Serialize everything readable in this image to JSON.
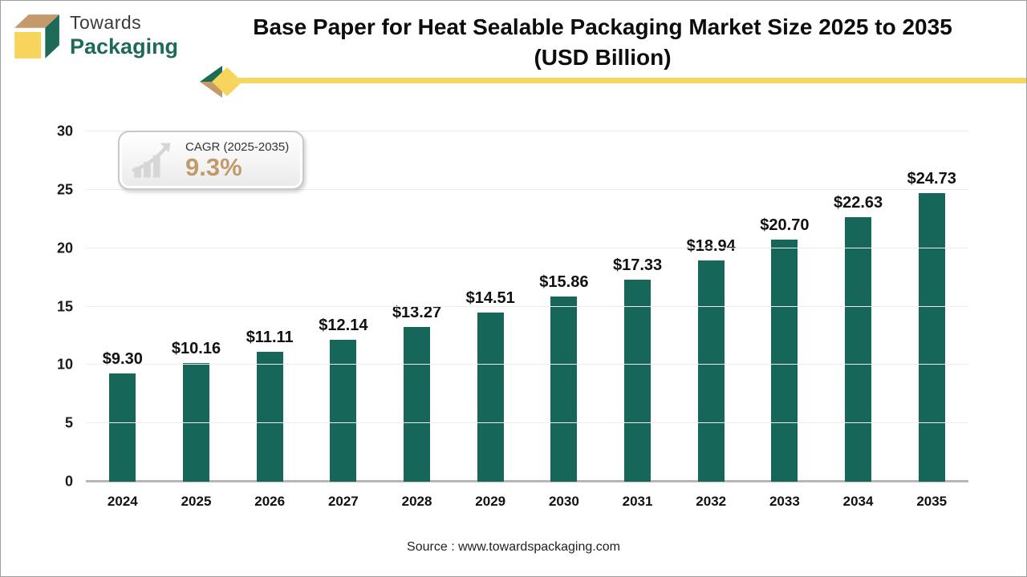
{
  "header": {
    "logo_line1": "Towards",
    "logo_line2": "Packaging",
    "title_line1": "Base Paper for Heat Sealable Packaging Market Size 2025 to 2035",
    "title_line2": "(USD Billion)"
  },
  "cagr_badge": {
    "label": "CAGR (2025-2035)",
    "value": "9.3%"
  },
  "chart_data": {
    "type": "bar",
    "title": "Base Paper for Heat Sealable Packaging Market Size 2025 to 2035 (USD Billion)",
    "categories": [
      "2024",
      "2025",
      "2026",
      "2027",
      "2028",
      "2029",
      "2030",
      "2031",
      "2032",
      "2033",
      "2034",
      "2035"
    ],
    "values": [
      9.3,
      10.16,
      11.11,
      12.14,
      13.27,
      14.51,
      15.86,
      17.33,
      18.94,
      20.7,
      22.63,
      24.73
    ],
    "value_labels": [
      "$9.30",
      "$10.16",
      "$11.11",
      "$12.14",
      "$13.27",
      "$14.51",
      "$15.86",
      "$17.33",
      "$18.94",
      "$20.70",
      "$22.63",
      "$24.73"
    ],
    "xlabel": "",
    "ylabel": "",
    "ylim": [
      0,
      30
    ],
    "ytick_step": 5,
    "grid": true,
    "legend": "none",
    "bar_color": "#17665A"
  },
  "footer": {
    "source": "Source : www.towardspackaging.com"
  },
  "colors": {
    "bar": "#17665A",
    "logo_green": "#1E6A58",
    "logo_tan": "#C49A6B",
    "logo_yellow": "#F7D45C",
    "accent_line": "#F5D65E",
    "cagr_value": "#C2996B",
    "gridline": "#ECECEC",
    "axis_line": "#B7B7B7"
  }
}
